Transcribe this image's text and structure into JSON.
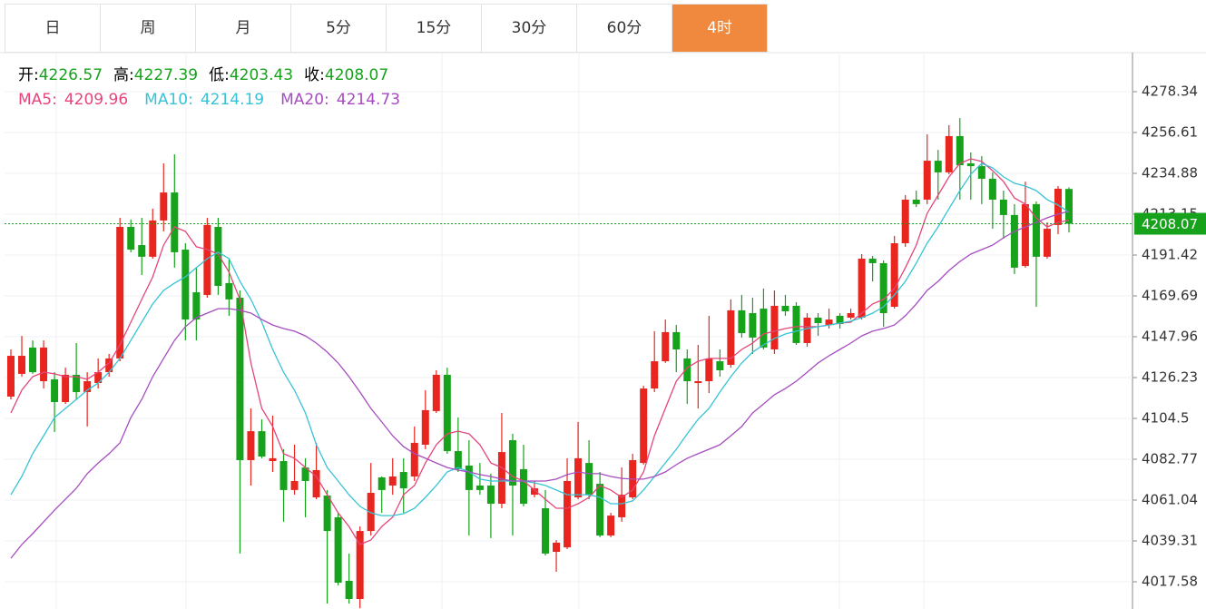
{
  "tabs": [
    "日",
    "周",
    "月",
    "5分",
    "15分",
    "30分",
    "60分",
    "4时"
  ],
  "active_tab": 7,
  "chart_data": {
    "type": "candlestick",
    "ohlc_labels": [
      "开:",
      "高:",
      "低:",
      "收:"
    ],
    "up_color": "#e8261f",
    "down_color": "#17a21c",
    "ylim": [
      4003.1,
      4299.1
    ],
    "yticks": [
      4017.58,
      4039.31,
      4061.04,
      4082.77,
      4104.5,
      4126.23,
      4147.96,
      4169.69,
      4191.42,
      4213.15,
      4234.88,
      4256.61,
      4278.34
    ],
    "grid": true,
    "open": [
      4116.1,
      4128.2,
      4142.2,
      4124.3,
      4125.3,
      4113.2,
      4127.7,
      4118.5,
      4123.3,
      4129.1,
      4136.4,
      4206.4,
      4196.7,
      4190.5,
      4209.8,
      4224.7,
      4194.3,
      4171.6,
      4170.2,
      4206.4,
      4176.5,
      4168.7,
      4082.3,
      4097.7,
      4081.8,
      4081.8,
      4066.4,
      4078.4,
      4062.5,
      4063.5,
      4051.9,
      4018.1,
      4008.4,
      4044.6,
      4073.1,
      4068.8,
      4076.0,
      4073.6,
      4090.5,
      4108.4,
      4127.7,
      4087.1,
      4079.4,
      4068.8,
      4068.8,
      4059.1,
      4092.9,
      4077.5,
      4063.9,
      4056.7,
      4033.5,
      4035.9,
      4062.5,
      4080.8,
      4069.7,
      4042.2,
      4051.9,
      4062.5,
      4080.8,
      4120.4,
      4134.9,
      4150.4,
      4136.4,
      4123.3,
      4124.3,
      4134.9,
      4133.0,
      4162.0,
      4160.5,
      4162.9,
      4141.2,
      4164.4,
      4164.4,
      4144.6,
      4158.1,
      4154.2,
      4159.1,
      4158.1,
      4158.1,
      4189.5,
      4187.1,
      4163.9,
      4197.7,
      4220.9,
      4220.9,
      4241.6,
      4235.4,
      4254.7,
      4240.2,
      4238.7,
      4232.0,
      4220.9,
      4212.7,
      4185.6,
      4218.5,
      4190.5,
      4207.4,
      4226.57
    ],
    "high": [
      4141.2,
      4148.4,
      4146.0,
      4146.0,
      4129.1,
      4131.5,
      4144.6,
      4129.1,
      4136.4,
      4138.8,
      4211.2,
      4210.3,
      4211.2,
      4216.1,
      4240.2,
      4245.0,
      4197.7,
      4184.7,
      4211.2,
      4211.2,
      4189.5,
      4172.6,
      4109.8,
      4104.0,
      4106.0,
      4088.1,
      4090.5,
      4083.3,
      4091.5,
      4066.4,
      4054.3,
      4032.6,
      4047.0,
      4080.8,
      4073.6,
      4083.3,
      4083.3,
      4100.2,
      4119.5,
      4130.1,
      4131.5,
      4105.0,
      4092.9,
      4080.8,
      4075.1,
      4107.4,
      4096.3,
      4090.5,
      4071.2,
      4066.4,
      4039.8,
      4083.3,
      4102.6,
      4092.9,
      4076.0,
      4054.3,
      4078.4,
      4085.7,
      4121.9,
      4150.9,
      4157.1,
      4154.2,
      4141.2,
      4143.6,
      4159.1,
      4141.2,
      4167.8,
      4170.2,
      4168.7,
      4173.6,
      4172.6,
      4170.2,
      4166.3,
      4160.5,
      4160.5,
      4162.9,
      4160.5,
      4162.9,
      4191.9,
      4190.9,
      4188.5,
      4201.6,
      4223.3,
      4225.7,
      4255.6,
      4247.4,
      4260.5,
      4264.3,
      4246.0,
      4244.1,
      4235.4,
      4225.7,
      4218.5,
      4230.5,
      4219.9,
      4208.8,
      4228.1,
      4227.39
    ],
    "low": [
      4114.6,
      4126.7,
      4128.2,
      4120.4,
      4097.3,
      4112.2,
      4114.6,
      4100.2,
      4120.4,
      4126.7,
      4134.9,
      4192.9,
      4180.8,
      4189.5,
      4204.0,
      4184.7,
      4146.0,
      4146.0,
      4168.7,
      4170.2,
      4159.1,
      4032.6,
      4068.8,
      4083.3,
      4076.0,
      4049.5,
      4063.9,
      4051.9,
      4061.5,
      4006.0,
      4015.7,
      4006.0,
      4003.5,
      4042.2,
      4054.3,
      4063.9,
      4054.3,
      4071.2,
      4088.1,
      4107.4,
      4085.7,
      4076.0,
      4042.2,
      4063.9,
      4040.8,
      4056.7,
      4042.2,
      4057.7,
      4062.5,
      4031.6,
      4022.9,
      4035.0,
      4061.5,
      4061.5,
      4041.3,
      4041.3,
      4049.5,
      4061.5,
      4079.9,
      4118.5,
      4134.0,
      4129.1,
      4112.2,
      4109.8,
      4118.0,
      4126.7,
      4131.5,
      4147.5,
      4138.8,
      4141.2,
      4138.8,
      4159.1,
      4143.6,
      4142.7,
      4148.4,
      4152.3,
      4152.3,
      4157.1,
      4157.1,
      4177.4,
      4153.3,
      4162.9,
      4195.8,
      4217.0,
      4218.5,
      4220.9,
      4234.4,
      4220.9,
      4220.9,
      4218.5,
      4205.4,
      4200.1,
      4181.3,
      4184.7,
      4163.9,
      4189.5,
      4202.5,
      4203.43
    ],
    "close": [
      4137.8,
      4137.8,
      4129.1,
      4142.2,
      4113.2,
      4127.7,
      4118.5,
      4124.3,
      4129.1,
      4136.4,
      4206.4,
      4194.3,
      4190.5,
      4209.8,
      4224.7,
      4192.9,
      4157.1,
      4157.1,
      4207.4,
      4175.0,
      4167.8,
      4082.3,
      4097.7,
      4084.2,
      4083.3,
      4066.4,
      4071.2,
      4071.2,
      4077.0,
      4044.6,
      4017.1,
      4008.4,
      4044.6,
      4064.9,
      4066.4,
      4073.6,
      4067.3,
      4091.5,
      4108.9,
      4127.7,
      4087.1,
      4077.5,
      4066.4,
      4066.4,
      4059.1,
      4086.6,
      4068.8,
      4059.1,
      4067.3,
      4032.6,
      4038.4,
      4071.2,
      4083.3,
      4063.9,
      4042.2,
      4052.8,
      4063.9,
      4082.3,
      4120.4,
      4134.9,
      4150.4,
      4141.2,
      4124.3,
      4124.3,
      4136.4,
      4130.1,
      4162.0,
      4149.9,
      4147.5,
      4142.2,
      4164.4,
      4161.5,
      4144.6,
      4158.1,
      4155.2,
      4157.1,
      4154.7,
      4160.5,
      4189.5,
      4187.1,
      4160.5,
      4197.7,
      4220.9,
      4218.5,
      4241.6,
      4235.4,
      4254.7,
      4239.2,
      4238.7,
      4232.0,
      4220.9,
      4212.7,
      4184.7,
      4218.5,
      4190.5,
      4205.4,
      4226.7,
      4208.07
    ],
    "series": [
      {
        "name": "MA5:",
        "color": "#e5457b",
        "values": [
          4107.4,
          4119.5,
          4126.7,
          4129.1,
          4128.2,
          4126.7,
          4126.7,
          4125.3,
          4129.1,
          4134.0,
          4143.6,
          4155.7,
          4167.8,
          4179.8,
          4196.7,
          4206.4,
          4204.0,
          4195.8,
          4194.3,
          4191.9,
          4182.3,
          4167.8,
          4134.0,
          4109.8,
          4100.2,
          4085.7,
          4083.3,
          4078.4,
          4073.6,
          4063.9,
          4054.3,
          4047.0,
          4037.4,
          4039.8,
          4047.0,
          4051.9,
          4063.9,
          4068.8,
          4080.8,
          4090.5,
          4096.3,
          4097.7,
          4096.3,
          4090.5,
          4080.8,
          4078.4,
          4073.6,
          4071.2,
          4066.4,
          4061.5,
          4056.7,
          4056.7,
          4059.1,
          4062.5,
          4068.8,
          4066.4,
          4062.5,
          4066.4,
          4076.0,
          4095.3,
          4109.8,
          4124.3,
          4131.5,
          4134.9,
          4136.4,
          4136.4,
          4136.4,
          4141.2,
          4144.6,
          4149.4,
          4150.9,
          4152.3,
          4153.3,
          4153.3,
          4153.3,
          4154.2,
          4155.2,
          4155.7,
          4160.5,
          4165.4,
          4167.8,
          4173.6,
          4184.7,
          4196.7,
          4213.6,
          4223.3,
          4233.0,
          4240.2,
          4242.6,
          4241.2,
          4236.3,
          4230.5,
          4221.8,
          4218.5,
          4211.2,
          4206.4,
          4208.8,
          4209.96
        ]
      },
      {
        "name": "MA10:",
        "color": "#36c3d5",
        "values": [
          4063.9,
          4073.6,
          4085.7,
          4095.3,
          4105.0,
          4109.8,
          4114.6,
          4119.5,
          4123.3,
          4129.1,
          4136.4,
          4146.0,
          4155.7,
          4165.4,
          4172.6,
          4176.5,
          4179.8,
          4184.7,
          4189.5,
          4192.9,
          4189.5,
          4177.4,
          4167.8,
          4155.7,
          4141.2,
          4129.1,
          4119.5,
          4107.4,
          4090.5,
          4078.4,
          4071.2,
          4063.9,
          4057.7,
          4054.3,
          4052.8,
          4052.8,
          4053.8,
          4056.7,
          4062.5,
          4068.8,
          4076.0,
          4078.4,
          4076.0,
          4072.2,
          4071.2,
          4071.2,
          4071.2,
          4071.2,
          4070.2,
          4068.8,
          4066.4,
          4063.9,
          4063.9,
          4063.9,
          4062.5,
          4059.1,
          4059.1,
          4060.6,
          4066.4,
          4073.6,
          4080.8,
          4088.1,
          4096.3,
          4104.0,
          4109.8,
          4118.5,
          4126.7,
          4134.0,
          4139.8,
          4143.6,
          4147.0,
          4149.4,
          4150.9,
          4152.3,
          4153.3,
          4154.2,
          4155.2,
          4156.2,
          4158.1,
          4160.5,
          4163.9,
          4170.2,
          4177.4,
          4187.1,
          4197.7,
          4206.4,
          4216.1,
          4225.7,
          4234.4,
          4240.2,
          4237.8,
          4233.0,
          4229.6,
          4228.1,
          4225.7,
          4220.9,
          4218.0,
          4214.19
        ]
      },
      {
        "name": "MA20:",
        "color": "#a64cc0",
        "values": [
          4030.1,
          4037.4,
          4043.2,
          4049.5,
          4055.7,
          4061.5,
          4067.3,
          4075.1,
          4080.8,
          4085.7,
          4091.5,
          4105.0,
          4114.6,
          4126.7,
          4136.4,
          4146.0,
          4153.3,
          4158.1,
          4160.5,
          4162.9,
          4162.9,
          4162.0,
          4160.5,
          4157.1,
          4154.2,
          4152.3,
          4150.9,
          4148.4,
          4144.6,
          4139.8,
          4134.0,
          4126.7,
          4118.5,
          4109.8,
          4102.6,
          4095.3,
          4089.5,
          4085.7,
          4083.3,
          4080.8,
          4078.4,
          4077.0,
          4076.0,
          4074.6,
          4073.6,
          4072.2,
          4071.2,
          4071.2,
          4071.2,
          4071.2,
          4072.2,
          4074.6,
          4076.0,
          4075.1,
          4075.1,
          4073.6,
          4072.6,
          4072.2,
          4072.2,
          4073.6,
          4076.0,
          4079.9,
          4083.3,
          4085.7,
          4088.1,
          4090.5,
          4095.3,
          4100.2,
          4107.4,
          4112.2,
          4117.1,
          4120.4,
          4124.3,
          4129.1,
          4134.0,
          4137.8,
          4141.2,
          4144.6,
          4148.4,
          4150.9,
          4152.3,
          4154.2,
          4159.1,
          4165.4,
          4172.6,
          4177.4,
          4183.2,
          4188.0,
          4191.9,
          4194.3,
          4196.7,
          4200.6,
          4204.0,
          4206.4,
          4208.8,
          4211.2,
          4213.2,
          4214.73
        ]
      }
    ]
  }
}
